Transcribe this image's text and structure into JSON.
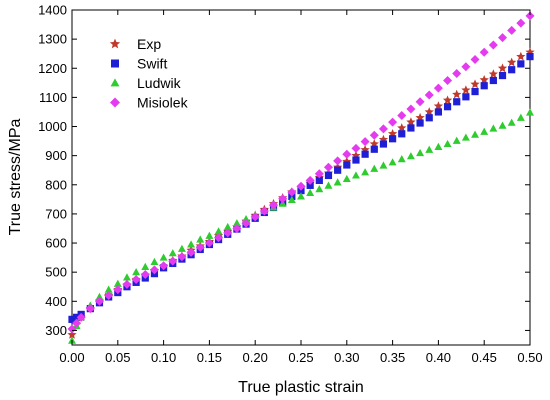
{
  "chart_data": {
    "type": "scatter",
    "title": "",
    "xlabel": "True plastic strain",
    "ylabel": "True stress/MPa",
    "xlim": [
      0,
      0.5
    ],
    "ylim": [
      250,
      1400
    ],
    "xticks": [
      "0.00",
      "0.05",
      "0.10",
      "0.15",
      "0.20",
      "0.25",
      "0.30",
      "0.35",
      "0.40",
      "0.45",
      "0.50"
    ],
    "yticks": [
      "300",
      "400",
      "500",
      "600",
      "700",
      "800",
      "900",
      "1000",
      "1100",
      "1200",
      "1300",
      "1400"
    ],
    "grid": false,
    "legend_position": "top-left",
    "series": [
      {
        "name": "Exp",
        "marker": "star",
        "color": "#c0392b",
        "x": [
          0.0,
          0.005,
          0.01,
          0.02,
          0.03,
          0.04,
          0.05,
          0.06,
          0.07,
          0.08,
          0.09,
          0.1,
          0.11,
          0.12,
          0.13,
          0.14,
          0.15,
          0.16,
          0.17,
          0.18,
          0.19,
          0.2,
          0.21,
          0.22,
          0.23,
          0.24,
          0.25,
          0.26,
          0.27,
          0.28,
          0.29,
          0.3,
          0.31,
          0.32,
          0.33,
          0.34,
          0.35,
          0.36,
          0.37,
          0.38,
          0.39,
          0.4,
          0.41,
          0.42,
          0.43,
          0.44,
          0.45,
          0.46,
          0.47,
          0.48,
          0.49,
          0.5
        ],
        "y": [
          285,
          320,
          345,
          375,
          400,
          420,
          440,
          455,
          475,
          490,
          505,
          520,
          540,
          555,
          575,
          590,
          605,
          625,
          640,
          655,
          675,
          695,
          715,
          735,
          755,
          775,
          790,
          805,
          825,
          840,
          860,
          880,
          900,
          920,
          940,
          955,
          975,
          995,
          1015,
          1030,
          1050,
          1070,
          1090,
          1110,
          1125,
          1145,
          1160,
          1180,
          1200,
          1220,
          1240,
          1255
        ]
      },
      {
        "name": "Swift",
        "marker": "square",
        "color": "#1f1fd6",
        "x": [
          0.0,
          0.005,
          0.01,
          0.02,
          0.03,
          0.04,
          0.05,
          0.06,
          0.07,
          0.08,
          0.09,
          0.1,
          0.11,
          0.12,
          0.13,
          0.14,
          0.15,
          0.16,
          0.17,
          0.18,
          0.19,
          0.2,
          0.21,
          0.22,
          0.23,
          0.24,
          0.25,
          0.26,
          0.27,
          0.28,
          0.29,
          0.3,
          0.31,
          0.32,
          0.33,
          0.34,
          0.35,
          0.36,
          0.37,
          0.38,
          0.39,
          0.4,
          0.41,
          0.42,
          0.43,
          0.44,
          0.45,
          0.46,
          0.47,
          0.48,
          0.49,
          0.5
        ],
        "y": [
          338,
          345,
          355,
          375,
          395,
          415,
          430,
          450,
          465,
          480,
          495,
          515,
          530,
          545,
          560,
          578,
          595,
          612,
          630,
          648,
          665,
          685,
          705,
          722,
          740,
          760,
          780,
          798,
          815,
          832,
          850,
          868,
          885,
          905,
          922,
          940,
          958,
          975,
          995,
          1012,
          1030,
          1050,
          1068,
          1085,
          1102,
          1120,
          1140,
          1158,
          1175,
          1195,
          1215,
          1240
        ]
      },
      {
        "name": "Ludwik",
        "marker": "triangle",
        "color": "#2ecc2e",
        "x": [
          0.0,
          0.005,
          0.01,
          0.02,
          0.03,
          0.04,
          0.05,
          0.06,
          0.07,
          0.08,
          0.09,
          0.1,
          0.11,
          0.12,
          0.13,
          0.14,
          0.15,
          0.16,
          0.17,
          0.18,
          0.19,
          0.2,
          0.21,
          0.22,
          0.23,
          0.24,
          0.25,
          0.26,
          0.27,
          0.28,
          0.29,
          0.3,
          0.31,
          0.32,
          0.33,
          0.34,
          0.35,
          0.36,
          0.37,
          0.38,
          0.39,
          0.4,
          0.41,
          0.42,
          0.43,
          0.44,
          0.45,
          0.46,
          0.47,
          0.48,
          0.49,
          0.5
        ],
        "y": [
          265,
          315,
          345,
          385,
          415,
          440,
          460,
          482,
          500,
          518,
          535,
          550,
          565,
          580,
          595,
          612,
          625,
          640,
          655,
          668,
          682,
          695,
          710,
          722,
          735,
          748,
          760,
          772,
          785,
          797,
          808,
          820,
          832,
          843,
          855,
          866,
          877,
          888,
          898,
          909,
          920,
          930,
          940,
          951,
          962,
          972,
          982,
          993,
          1003,
          1013,
          1030,
          1048
        ]
      },
      {
        "name": "Misiolek",
        "marker": "diamond",
        "color": "#e53bf0",
        "x": [
          0.0,
          0.005,
          0.01,
          0.02,
          0.03,
          0.04,
          0.05,
          0.06,
          0.07,
          0.08,
          0.09,
          0.1,
          0.11,
          0.12,
          0.13,
          0.14,
          0.15,
          0.16,
          0.17,
          0.18,
          0.19,
          0.2,
          0.21,
          0.22,
          0.23,
          0.24,
          0.25,
          0.26,
          0.27,
          0.28,
          0.29,
          0.3,
          0.31,
          0.32,
          0.33,
          0.34,
          0.35,
          0.36,
          0.37,
          0.38,
          0.39,
          0.4,
          0.41,
          0.42,
          0.43,
          0.44,
          0.45,
          0.46,
          0.47,
          0.48,
          0.49,
          0.5
        ],
        "y": [
          305,
          325,
          345,
          375,
          400,
          420,
          440,
          458,
          475,
          492,
          508,
          522,
          538,
          553,
          568,
          585,
          600,
          618,
          635,
          650,
          668,
          690,
          710,
          730,
          752,
          775,
          795,
          815,
          838,
          860,
          882,
          905,
          925,
          948,
          970,
          992,
          1015,
          1038,
          1060,
          1085,
          1108,
          1132,
          1158,
          1182,
          1205,
          1230,
          1255,
          1280,
          1305,
          1330,
          1355,
          1380
        ]
      }
    ]
  }
}
